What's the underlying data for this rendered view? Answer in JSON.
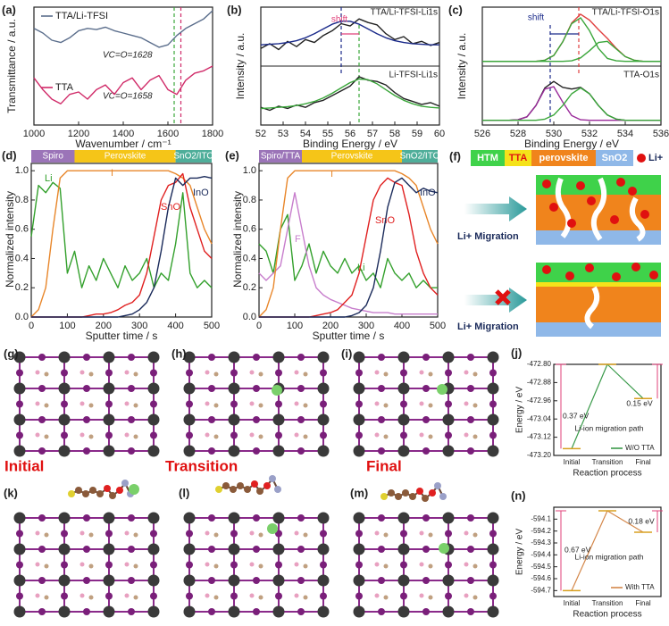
{
  "chart_data": [
    {
      "type": "line",
      "label": "(a)",
      "xlabel": "Wavenumber / cm⁻¹",
      "ylabel": "Transmittance / a.u.",
      "x": [
        1000,
        1040,
        1080,
        1120,
        1160,
        1200,
        1240,
        1280,
        1320,
        1360,
        1400,
        1440,
        1480,
        1520,
        1560,
        1600,
        1640,
        1680,
        1720,
        1760,
        1800
      ],
      "xlim": [
        1000,
        1800
      ],
      "xticks": [
        1000,
        1200,
        1400,
        1600,
        1800
      ],
      "ylim": [
        0,
        1
      ],
      "series": [
        {
          "name": "TTA/Li-TFSI",
          "color": "#5b6e8c",
          "values": [
            0.82,
            0.78,
            0.72,
            0.7,
            0.74,
            0.8,
            0.82,
            0.81,
            0.83,
            0.8,
            0.78,
            0.76,
            0.74,
            0.7,
            0.66,
            0.68,
            0.76,
            0.82,
            0.86,
            0.9,
            0.97
          ]
        },
        {
          "name": "TTA",
          "color": "#d02a68",
          "values": [
            0.4,
            0.3,
            0.22,
            0.18,
            0.26,
            0.28,
            0.22,
            0.3,
            0.34,
            0.26,
            0.36,
            0.4,
            0.3,
            0.38,
            0.42,
            0.3,
            0.26,
            0.38,
            0.44,
            0.46,
            0.5
          ]
        }
      ],
      "markers": [
        {
          "x": 1628,
          "label": "VC=O=1628",
          "color": "#3aa63a"
        },
        {
          "x": 1658,
          "label": "VC=O=1658",
          "color": "#d02a68"
        }
      ]
    },
    {
      "type": "line",
      "label": "(b)",
      "xlabel": "Binding Energy / eV",
      "ylabel": "Intensity / a.u.",
      "x": [
        52,
        52.4,
        52.8,
        53.2,
        53.6,
        54,
        54.4,
        54.8,
        55.2,
        55.6,
        56,
        56.4,
        56.8,
        57.2,
        57.6,
        58,
        58.4,
        58.8,
        59.2,
        59.6,
        60
      ],
      "xlim": [
        52,
        60
      ],
      "xticks": [
        52,
        53,
        54,
        55,
        56,
        57,
        58,
        59,
        60
      ],
      "ylim": [
        0,
        2
      ],
      "series": [
        {
          "color": "#222222",
          "values": [
            1.3,
            1.38,
            1.28,
            1.42,
            1.33,
            1.45,
            1.4,
            1.52,
            1.6,
            1.72,
            1.68,
            1.8,
            1.74,
            1.7,
            1.55,
            1.45,
            1.5,
            1.38,
            1.42,
            1.35,
            1.4
          ]
        },
        {
          "color": "#1a2a8a",
          "values": [
            1.36,
            1.37,
            1.38,
            1.4,
            1.43,
            1.48,
            1.55,
            1.63,
            1.71,
            1.76,
            1.76,
            1.71,
            1.63,
            1.55,
            1.48,
            1.43,
            1.4,
            1.38,
            1.37,
            1.36,
            1.36
          ]
        },
        {
          "color": "#222222",
          "values": [
            0.3,
            0.25,
            0.32,
            0.28,
            0.34,
            0.3,
            0.38,
            0.42,
            0.5,
            0.58,
            0.66,
            0.82,
            0.76,
            0.74,
            0.68,
            0.55,
            0.45,
            0.4,
            0.35,
            0.38,
            0.32
          ]
        },
        {
          "color": "#3aa63a",
          "values": [
            0.28,
            0.29,
            0.3,
            0.31,
            0.33,
            0.36,
            0.4,
            0.46,
            0.54,
            0.63,
            0.72,
            0.78,
            0.77,
            0.7,
            0.6,
            0.5,
            0.42,
            0.36,
            0.32,
            0.3,
            0.29
          ]
        }
      ],
      "markers": [
        {
          "x": 55.6,
          "color": "#1a2a8a"
        },
        {
          "x": 56.4,
          "color": "#3aa63a"
        }
      ],
      "annotations": [
        "shift",
        "TTA/Li-TFSI-Li1s",
        "Li-TFSI-Li1s"
      ]
    },
    {
      "type": "line",
      "label": "(c)",
      "xlabel": "Binding Energy / eV",
      "ylabel": "Intensity / a.u.",
      "x": [
        526,
        526.5,
        527,
        527.5,
        528,
        528.5,
        529,
        529.5,
        530,
        530.5,
        531,
        531.5,
        532,
        532.5,
        533,
        533.5,
        534,
        534.5,
        535,
        535.5,
        536
      ],
      "xlim": [
        526,
        536
      ],
      "xticks": [
        526,
        528,
        530,
        532,
        534,
        536
      ],
      "ylim": [
        0,
        2
      ],
      "series": [
        {
          "color": "#e04040",
          "values": [
            1.08,
            1.08,
            1.08,
            1.08,
            1.08,
            1.08,
            1.08,
            1.1,
            1.18,
            1.41,
            1.73,
            1.88,
            1.78,
            1.62,
            1.47,
            1.3,
            1.16,
            1.1,
            1.08,
            1.08,
            1.08
          ]
        },
        {
          "color": "#3aa63a",
          "values": [
            1.08,
            1.08,
            1.08,
            1.08,
            1.08,
            1.08,
            1.08,
            1.1,
            1.18,
            1.41,
            1.72,
            1.82,
            1.6,
            1.3,
            1.13,
            1.09,
            1.08,
            1.08,
            1.08,
            1.08,
            1.08
          ]
        },
        {
          "color": "#3aa63a",
          "values": [
            1.08,
            1.08,
            1.08,
            1.08,
            1.08,
            1.08,
            1.08,
            1.08,
            1.08,
            1.08,
            1.09,
            1.14,
            1.26,
            1.4,
            1.42,
            1.29,
            1.16,
            1.1,
            1.08,
            1.08,
            1.08
          ]
        },
        {
          "color": "#222222",
          "values": [
            0.08,
            0.08,
            0.08,
            0.08,
            0.09,
            0.14,
            0.33,
            0.63,
            0.74,
            0.64,
            0.61,
            0.64,
            0.53,
            0.33,
            0.17,
            0.1,
            0.08,
            0.08,
            0.08,
            0.08,
            0.08
          ]
        },
        {
          "color": "#9a2a9a",
          "values": [
            0.08,
            0.08,
            0.08,
            0.08,
            0.09,
            0.14,
            0.33,
            0.61,
            0.65,
            0.39,
            0.16,
            0.09,
            0.08,
            0.08,
            0.08,
            0.08,
            0.08,
            0.08,
            0.08,
            0.08,
            0.08
          ]
        },
        {
          "color": "#3aa63a",
          "values": [
            0.08,
            0.08,
            0.08,
            0.08,
            0.08,
            0.08,
            0.08,
            0.1,
            0.17,
            0.33,
            0.53,
            0.63,
            0.53,
            0.33,
            0.17,
            0.1,
            0.08,
            0.08,
            0.08,
            0.08,
            0.08
          ]
        }
      ],
      "markers": [
        {
          "x": 529.8,
          "color": "#1a2a8a"
        },
        {
          "x": 531.4,
          "color": "#e04040"
        }
      ],
      "annotations": [
        "shift",
        "TTA/Li-TFSI-O1s",
        "TTA-O1s"
      ]
    },
    {
      "type": "line",
      "label": "(d)",
      "xlabel": "Sputter time / s",
      "ylabel": "Normalized intensity",
      "x": [
        0,
        20,
        40,
        60,
        80,
        100,
        120,
        140,
        160,
        180,
        200,
        220,
        240,
        260,
        280,
        300,
        320,
        340,
        360,
        380,
        400,
        420,
        440,
        460,
        480,
        500
      ],
      "xlim": [
        0,
        500
      ],
      "xticks": [
        0,
        100,
        200,
        300,
        400,
        500
      ],
      "ylim": [
        0,
        1.05
      ],
      "yticks": [
        {
          "value": 0,
          "label": "0.0"
        },
        0.2,
        0.4,
        0.6,
        0.8,
        {
          "value": 1,
          "label": "1.0"
        }
      ],
      "layers": [
        {
          "label": "Spiro",
          "range": [
            0,
            120
          ],
          "color": "#9b74b8"
        },
        {
          "label": "Perovskite",
          "range": [
            120,
            400
          ],
          "color": "#f5c518"
        },
        {
          "label": "SnO2/ITO",
          "range": [
            400,
            500
          ],
          "color": "#4fae9a"
        }
      ],
      "series": [
        {
          "name": "Li",
          "color": "#33a02c",
          "values": [
            0.55,
            0.9,
            0.85,
            0.92,
            0.88,
            0.3,
            0.45,
            0.2,
            0.35,
            0.25,
            0.4,
            0.3,
            0.2,
            0.35,
            0.25,
            0.3,
            0.4,
            0.2,
            0.3,
            0.25,
            0.5,
            0.85,
            0.3,
            0.2,
            0.25,
            0.2
          ]
        },
        {
          "name": "I",
          "color": "#e8862a",
          "values": [
            0,
            0.05,
            0.2,
            0.6,
            0.95,
            1,
            1,
            1,
            1,
            1,
            1,
            1,
            1,
            1,
            1,
            1,
            1,
            1,
            1,
            1,
            0.98,
            0.95,
            0.9,
            0.75,
            0.6,
            0.5
          ]
        },
        {
          "name": "SnO",
          "color": "#e02020",
          "values": [
            0,
            0,
            0,
            0,
            0,
            0,
            0,
            0,
            0.01,
            0.02,
            0.02,
            0.03,
            0.05,
            0.08,
            0.1,
            0.15,
            0.3,
            0.55,
            0.8,
            0.9,
            0.92,
            0.98,
            0.75,
            0.6,
            0.45,
            0.4
          ]
        },
        {
          "name": "InO",
          "color": "#1a2a5a",
          "values": [
            0,
            0,
            0,
            0,
            0,
            0,
            0,
            0,
            0,
            0,
            0,
            0,
            0,
            0.01,
            0.02,
            0.05,
            0.1,
            0.2,
            0.45,
            0.75,
            0.95,
            0.9,
            0.95,
            0.95,
            0.96,
            0.95
          ]
        }
      ]
    },
    {
      "type": "line",
      "label": "(e)",
      "xlabel": "Sputter time / s",
      "ylabel": "Normalized intensity",
      "x": [
        0,
        20,
        40,
        60,
        80,
        100,
        120,
        140,
        160,
        180,
        200,
        220,
        240,
        260,
        280,
        300,
        320,
        340,
        360,
        380,
        400,
        420,
        440,
        460,
        480,
        500
      ],
      "xlim": [
        0,
        500
      ],
      "xticks": [
        0,
        100,
        200,
        300,
        400,
        500
      ],
      "ylim": [
        0,
        1.05
      ],
      "yticks": [
        {
          "value": 0,
          "label": "0.0"
        },
        0.2,
        0.4,
        0.6,
        0.8,
        {
          "value": 1,
          "label": "1.0"
        }
      ],
      "layers": [
        {
          "label": "Spiro/TTA",
          "range": [
            0,
            120
          ],
          "color": "#9b74b8"
        },
        {
          "label": "Perovskite",
          "range": [
            120,
            400
          ],
          "color": "#f5c518"
        },
        {
          "label": "SnO2/ITO",
          "range": [
            400,
            500
          ],
          "color": "#4fae9a"
        }
      ],
      "series": [
        {
          "name": "Li",
          "color": "#33a02c",
          "values": [
            0.5,
            0.45,
            0.3,
            0.6,
            0.7,
            0.25,
            0.35,
            0.5,
            0.3,
            0.45,
            0.35,
            0.3,
            0.4,
            0.3,
            0.35,
            0.25,
            0.3,
            0.2,
            0.4,
            0.3,
            0.25,
            0.3,
            0.2,
            0.25,
            0.2,
            0.2
          ]
        },
        {
          "name": "F",
          "color": "#c77dcc",
          "values": [
            0.3,
            0.25,
            0.3,
            0.35,
            0.6,
            0.85,
            0.6,
            0.35,
            0.2,
            0.15,
            0.12,
            0.1,
            0.08,
            0.06,
            0.05,
            0.04,
            0.03,
            0.03,
            0.03,
            0.02,
            0.02,
            0.02,
            0.02,
            0.02,
            0.02,
            0.02
          ]
        },
        {
          "name": "I",
          "color": "#e8862a",
          "values": [
            0,
            0.05,
            0.2,
            0.6,
            0.95,
            1,
            1,
            1,
            1,
            1,
            1,
            1,
            1,
            1,
            1,
            1,
            1,
            1,
            1,
            1,
            0.98,
            0.95,
            0.9,
            0.75,
            0.6,
            0.5
          ]
        },
        {
          "name": "SnO",
          "color": "#e02020",
          "values": [
            0,
            0,
            0,
            0,
            0,
            0,
            0,
            0,
            0.01,
            0.02,
            0.03,
            0.05,
            0.1,
            0.15,
            0.3,
            0.55,
            0.8,
            0.9,
            0.95,
            0.92,
            0.9,
            0.7,
            0.45,
            0.3,
            0.2,
            0.15
          ]
        },
        {
          "name": "InO",
          "color": "#1a2a5a",
          "values": [
            0,
            0,
            0,
            0,
            0,
            0,
            0,
            0,
            0,
            0,
            0,
            0,
            0,
            0.01,
            0.03,
            0.08,
            0.2,
            0.45,
            0.75,
            0.92,
            0.95,
            0.9,
            0.85,
            0.88,
            0.86,
            0.85
          ]
        }
      ]
    },
    {
      "type": "energy",
      "label": "(j)",
      "xlabel": "Reaction process",
      "ylabel": "Energy / eV",
      "categories": [
        "Initial",
        "Transition",
        "Final"
      ],
      "ylim": [
        -473.2,
        -472.8
      ],
      "yticks": [
        {
          "value": -472.8,
          "label": "-472.80"
        },
        {
          "value": -472.88,
          "label": "-472.88"
        },
        {
          "value": -472.96,
          "label": "-472.96"
        },
        {
          "value": -473.04,
          "label": "-473.04"
        },
        {
          "value": -473.12,
          "label": "-473.12"
        },
        {
          "value": -473.2,
          "label": "-473.20"
        }
      ],
      "series": [
        {
          "name": "W/O TTA",
          "color": "#3a9a4a",
          "values": [
            -473.17,
            -472.8,
            -472.95
          ]
        }
      ],
      "annotations": [
        "0.37 eV",
        "0.15 eV",
        "Li-ion migration path"
      ]
    },
    {
      "type": "energy",
      "label": "(n)",
      "xlabel": "Reaction process",
      "ylabel": "Energy / eV",
      "categories": [
        "Initial",
        "Transition",
        "Final"
      ],
      "ylim": [
        -594.75,
        -594.0
      ],
      "yticks": [
        -594.1,
        -594.2,
        -594.3,
        -594.4,
        -594.5,
        -594.6,
        -594.7
      ],
      "series": [
        {
          "name": "With TTA",
          "color": "#d4874a",
          "values": [
            -594.7,
            -594.03,
            -594.21
          ]
        }
      ],
      "annotations": [
        "0.67 eV",
        "0.18 eV",
        "Li-ion migration path"
      ]
    }
  ],
  "schematic": {
    "label": "(f)",
    "layers": [
      "HTM",
      "TTA",
      "perovskite",
      "SnO2"
    ],
    "ion": "Li+",
    "migration": [
      "Li+ Migration",
      "Li+ Migration"
    ]
  },
  "structures": {
    "labels": [
      "(g)",
      "(h)",
      "(i)",
      "(k)",
      "(l)",
      "(m)"
    ],
    "stages": [
      "Initial",
      "Transition",
      "Final"
    ]
  }
}
